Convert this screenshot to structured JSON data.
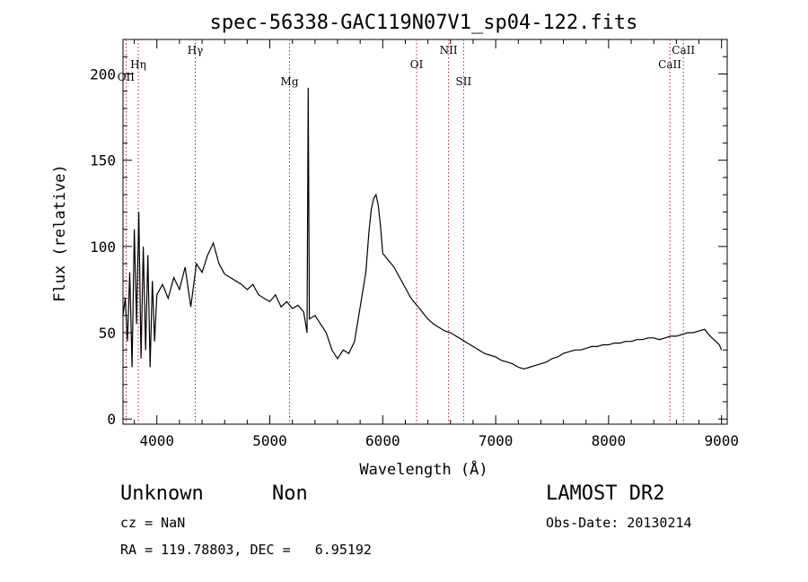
{
  "chart_data": {
    "type": "line",
    "title": "spec-56338-GAC119N07V1_sp04-122.fits",
    "xlabel": "Wavelength (Å)",
    "ylabel": "Flux (relative)",
    "xlim": [
      3700,
      9050
    ],
    "ylim": [
      -3,
      220
    ],
    "x_ticks": [
      4000,
      5000,
      6000,
      7000,
      8000,
      9000
    ],
    "y_ticks": [
      0,
      50,
      100,
      150,
      200
    ],
    "grid": false,
    "series": [
      {
        "color": "#000000",
        "x": [
          3700,
          3720,
          3740,
          3760,
          3780,
          3800,
          3820,
          3840,
          3860,
          3880,
          3900,
          3920,
          3940,
          3960,
          3980,
          4000,
          4050,
          4100,
          4150,
          4200,
          4250,
          4300,
          4350,
          4400,
          4450,
          4500,
          4550,
          4600,
          4650,
          4700,
          4750,
          4800,
          4850,
          4900,
          4950,
          5000,
          5050,
          5100,
          5150,
          5200,
          5250,
          5300,
          5330,
          5340,
          5350,
          5400,
          5450,
          5500,
          5550,
          5600,
          5650,
          5700,
          5750,
          5800,
          5850,
          5880,
          5900,
          5920,
          5940,
          5960,
          5980,
          6000,
          6050,
          6100,
          6150,
          6200,
          6250,
          6300,
          6350,
          6400,
          6450,
          6500,
          6550,
          6600,
          6650,
          6700,
          6750,
          6800,
          6850,
          6900,
          6950,
          7000,
          7050,
          7100,
          7150,
          7200,
          7250,
          7300,
          7350,
          7400,
          7450,
          7500,
          7550,
          7600,
          7650,
          7700,
          7750,
          7800,
          7850,
          7900,
          7950,
          8000,
          8050,
          8100,
          8150,
          8200,
          8250,
          8300,
          8350,
          8400,
          8450,
          8500,
          8550,
          8600,
          8650,
          8700,
          8750,
          8800,
          8850,
          8900,
          8950,
          8980,
          9000
        ],
        "y": [
          60,
          70,
          45,
          85,
          30,
          110,
          55,
          120,
          35,
          100,
          40,
          95,
          30,
          80,
          45,
          72,
          78,
          70,
          82,
          75,
          88,
          65,
          90,
          85,
          95,
          102,
          90,
          84,
          82,
          80,
          78,
          75,
          78,
          72,
          70,
          68,
          72,
          65,
          68,
          64,
          66,
          62,
          50,
          192,
          58,
          60,
          55,
          50,
          40,
          35,
          40,
          38,
          45,
          65,
          85,
          110,
          122,
          128,
          130,
          124,
          112,
          96,
          92,
          88,
          82,
          76,
          70,
          66,
          62,
          58,
          55,
          53,
          51,
          50,
          48,
          46,
          44,
          42,
          40,
          38,
          37,
          36,
          34,
          33,
          32,
          30,
          29,
          30,
          31,
          32,
          33,
          35,
          36,
          38,
          39,
          40,
          40,
          41,
          42,
          42,
          43,
          43,
          44,
          44,
          45,
          45,
          46,
          46,
          47,
          47,
          46,
          47,
          48,
          48,
          49,
          50,
          50,
          51,
          52,
          48,
          45,
          43,
          40
        ]
      }
    ],
    "lines": [
      {
        "x": 3727,
        "label": "OII"
      },
      {
        "x": 3835,
        "label": "Hη"
      },
      {
        "x": 4340,
        "label": "Hγ"
      },
      {
        "x": 5175,
        "label": "Mg"
      },
      {
        "x": 6300,
        "label": "OI"
      },
      {
        "x": 6583,
        "label": "NII"
      },
      {
        "x": 6716,
        "label": "SII"
      },
      {
        "x": 8542,
        "label": "CaII"
      },
      {
        "x": 8662,
        "label": "CaII"
      }
    ]
  },
  "info": {
    "class": "Unknown",
    "subclass": "Non",
    "survey": "LAMOST DR2",
    "cz": "cz = NaN",
    "obs_date": "Obs-Date: 20130214",
    "radec": "RA = 119.78803, DEC =   6.95192"
  }
}
